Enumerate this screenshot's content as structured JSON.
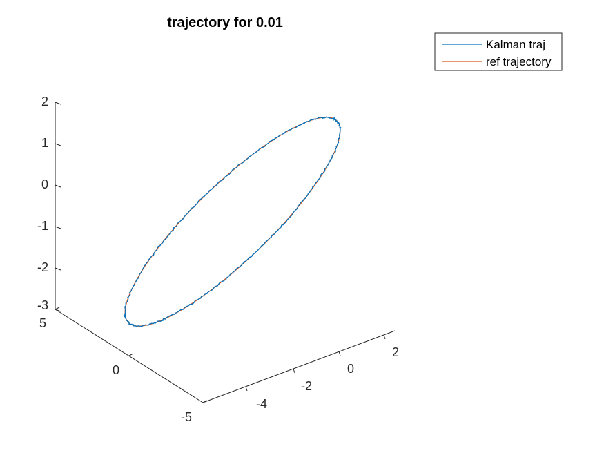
{
  "chart_data": {
    "type": "line",
    "title": "trajectory for 0.01",
    "xlabel": "",
    "ylabel": "",
    "zlabel": "",
    "projection": "3d",
    "grid": false,
    "legend_position": "top-right",
    "x_ticks": [
      {
        "value": -4,
        "label": "-4"
      },
      {
        "value": -2,
        "label": "-2"
      },
      {
        "value": 0,
        "label": "0"
      },
      {
        "value": 2,
        "label": "2"
      }
    ],
    "y_ticks": [
      {
        "value": 5,
        "label": "5"
      },
      {
        "value": 0,
        "label": "0"
      },
      {
        "value": -5,
        "label": "-5"
      }
    ],
    "z_ticks": [
      {
        "value": 2,
        "label": "2"
      },
      {
        "value": 1,
        "label": "1"
      },
      {
        "value": 0,
        "label": "0"
      },
      {
        "value": -1,
        "label": "-1"
      },
      {
        "value": -2,
        "label": "-2"
      },
      {
        "value": -3,
        "label": "-3"
      }
    ],
    "series": [
      {
        "name": "Kalman traj",
        "color": "#0072BD",
        "shape": "closed-ellipse",
        "noise": true
      },
      {
        "name": "ref trajectory",
        "color": "#D95319",
        "shape": "closed-ellipse",
        "noise": false
      }
    ]
  }
}
